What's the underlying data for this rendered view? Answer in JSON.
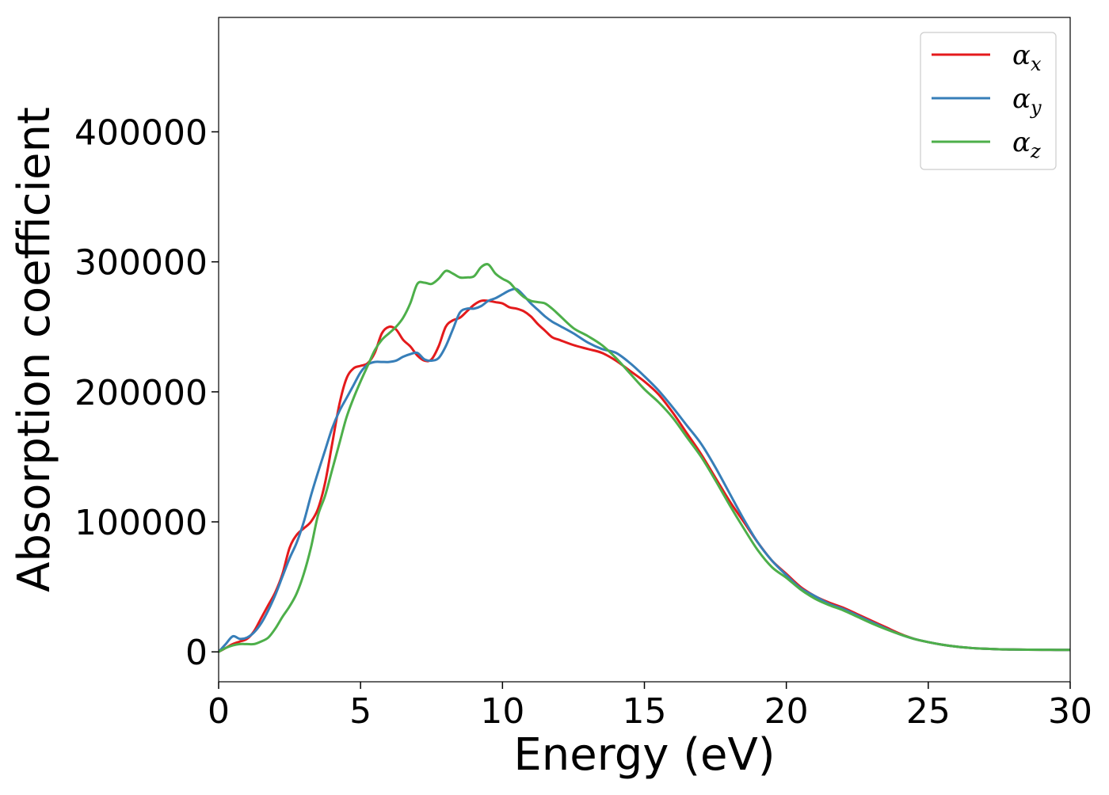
{
  "chart_data": {
    "type": "line",
    "title": "",
    "xlabel": "Energy (eV)",
    "ylabel": "Absorption coefficient",
    "xlim": [
      0,
      30
    ],
    "ylim": [
      -23000,
      488000
    ],
    "xticks": [
      0,
      5,
      10,
      15,
      20,
      25,
      30
    ],
    "yticks": [
      0,
      100000,
      200000,
      300000,
      400000
    ],
    "grid": false,
    "legend_position": "top-right",
    "series": [
      {
        "name": "α_x",
        "label_base": "α",
        "label_sub": "x",
        "color": "#e41a1c",
        "x": [
          0,
          0.25,
          0.5,
          0.75,
          1.0,
          1.25,
          1.5,
          1.75,
          2.0,
          2.25,
          2.5,
          2.75,
          3.0,
          3.25,
          3.5,
          3.75,
          4.0,
          4.25,
          4.5,
          4.75,
          5.0,
          5.25,
          5.5,
          5.75,
          6.0,
          6.25,
          6.5,
          6.75,
          7.0,
          7.25,
          7.5,
          7.75,
          8.0,
          8.25,
          8.5,
          8.75,
          9.0,
          9.25,
          9.5,
          9.75,
          10.0,
          10.25,
          10.5,
          10.75,
          11.0,
          11.25,
          11.5,
          11.75,
          12.0,
          12.5,
          13.0,
          13.5,
          14.0,
          14.5,
          15.0,
          15.5,
          16.0,
          16.5,
          17.0,
          17.5,
          18.0,
          18.5,
          19.0,
          19.5,
          20.0,
          20.5,
          21.0,
          21.5,
          22.0,
          22.5,
          23.0,
          23.5,
          24.0,
          24.5,
          25.0,
          25.5,
          26.0,
          26.5,
          27.0,
          27.5,
          28.0,
          28.5,
          29.0,
          29.5,
          30.0
        ],
        "y": [
          0,
          3000,
          6000,
          8000,
          10000,
          16000,
          26000,
          36000,
          46000,
          60000,
          80000,
          90000,
          95000,
          100000,
          110000,
          130000,
          160000,
          190000,
          210000,
          218000,
          220000,
          222000,
          230000,
          245000,
          250000,
          248000,
          240000,
          235000,
          228000,
          224000,
          225000,
          235000,
          250000,
          255000,
          257000,
          262000,
          267000,
          270000,
          270000,
          269000,
          268000,
          265000,
          264000,
          262000,
          258000,
          252000,
          247000,
          242000,
          240000,
          236000,
          233000,
          230000,
          224000,
          216000,
          208000,
          198000,
          184000,
          168000,
          152000,
          134000,
          116000,
          100000,
          84000,
          70000,
          60000,
          50000,
          43000,
          38000,
          34000,
          29000,
          24000,
          19000,
          14000,
          10000,
          7500,
          5500,
          4000,
          3000,
          2400,
          2000,
          1800,
          1700,
          1600,
          1550,
          1500
        ]
      },
      {
        "name": "α_y",
        "label_base": "α",
        "label_sub": "y",
        "color": "#377eb8",
        "x": [
          0,
          0.25,
          0.5,
          0.75,
          1.0,
          1.25,
          1.5,
          1.75,
          2.0,
          2.25,
          2.5,
          2.75,
          3.0,
          3.25,
          3.5,
          3.75,
          4.0,
          4.25,
          4.5,
          4.75,
          5.0,
          5.25,
          5.5,
          5.75,
          6.0,
          6.25,
          6.5,
          6.75,
          7.0,
          7.25,
          7.5,
          7.75,
          8.0,
          8.25,
          8.5,
          8.75,
          9.0,
          9.25,
          9.5,
          9.75,
          10.0,
          10.25,
          10.5,
          10.75,
          11.0,
          11.25,
          11.5,
          11.75,
          12.0,
          12.5,
          13.0,
          13.5,
          14.0,
          14.5,
          15.0,
          15.5,
          16.0,
          16.5,
          17.0,
          17.5,
          18.0,
          18.5,
          19.0,
          19.5,
          20.0,
          20.5,
          21.0,
          21.5,
          22.0,
          22.5,
          23.0,
          23.5,
          24.0,
          24.5,
          25.0,
          25.5,
          26.0,
          26.5,
          27.0,
          27.5,
          28.0,
          28.5,
          29.0,
          29.5,
          30.0
        ],
        "y": [
          0,
          6000,
          12000,
          10000,
          11000,
          15000,
          22000,
          32000,
          44000,
          58000,
          72000,
          84000,
          100000,
          120000,
          138000,
          155000,
          172000,
          185000,
          195000,
          205000,
          215000,
          221000,
          223000,
          223000,
          223000,
          224000,
          227000,
          229000,
          230000,
          225000,
          224000,
          226000,
          235000,
          248000,
          261000,
          264000,
          264000,
          266000,
          270000,
          272000,
          275000,
          278000,
          279000,
          274000,
          268000,
          263000,
          258000,
          254000,
          251000,
          245000,
          238000,
          233000,
          230000,
          222000,
          212000,
          201000,
          188000,
          174000,
          160000,
          142000,
          122000,
          102000,
          84000,
          70000,
          59000,
          49000,
          43000,
          37000,
          33000,
          28000,
          23000,
          18000,
          13500,
          10000,
          7500,
          5500,
          4000,
          3000,
          2400,
          2000,
          1800,
          1700,
          1600,
          1550,
          1500
        ]
      },
      {
        "name": "α_z",
        "label_base": "α",
        "label_sub": "z",
        "color": "#4daf4a",
        "x": [
          0,
          0.25,
          0.5,
          0.75,
          1.0,
          1.25,
          1.5,
          1.75,
          2.0,
          2.25,
          2.5,
          2.75,
          3.0,
          3.25,
          3.5,
          3.75,
          4.0,
          4.25,
          4.5,
          4.75,
          5.0,
          5.25,
          5.5,
          5.75,
          6.0,
          6.25,
          6.5,
          6.75,
          7.0,
          7.25,
          7.5,
          7.75,
          8.0,
          8.25,
          8.5,
          8.75,
          9.0,
          9.25,
          9.5,
          9.75,
          10.0,
          10.25,
          10.5,
          10.75,
          11.0,
          11.25,
          11.5,
          11.75,
          12.0,
          12.5,
          13.0,
          13.5,
          14.0,
          14.5,
          15.0,
          15.5,
          16.0,
          16.5,
          17.0,
          17.5,
          18.0,
          18.5,
          19.0,
          19.5,
          20.0,
          20.5,
          21.0,
          21.5,
          22.0,
          22.5,
          23.0,
          23.5,
          24.0,
          24.5,
          25.0,
          25.5,
          26.0,
          26.5,
          27.0,
          27.5,
          28.0,
          28.5,
          29.0,
          29.5,
          30.0
        ],
        "y": [
          0,
          3000,
          5000,
          6000,
          6000,
          6000,
          8000,
          11000,
          18000,
          27000,
          35000,
          45000,
          60000,
          80000,
          105000,
          120000,
          140000,
          160000,
          180000,
          195000,
          208000,
          220000,
          232000,
          240000,
          245000,
          250000,
          257000,
          268000,
          283000,
          284000,
          283000,
          287000,
          293000,
          291000,
          288000,
          288000,
          289000,
          296000,
          298000,
          291000,
          287000,
          284000,
          278000,
          273000,
          270000,
          269000,
          268000,
          264000,
          259000,
          249000,
          243000,
          236000,
          226000,
          214000,
          202000,
          192000,
          180000,
          165000,
          150000,
          132000,
          113000,
          95000,
          78000,
          65000,
          57000,
          48000,
          41000,
          36000,
          32000,
          27000,
          22000,
          17500,
          13500,
          10000,
          7500,
          5500,
          4000,
          3000,
          2400,
          2000,
          1800,
          1700,
          1600,
          1550,
          1500
        ]
      }
    ]
  }
}
